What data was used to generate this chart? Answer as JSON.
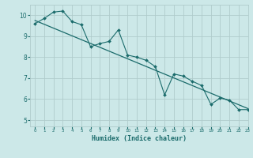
{
  "title": "",
  "xlabel": "Humidex (Indice chaleur)",
  "ylabel": "",
  "bg_color": "#cce8e8",
  "grid_color": "#b0cccc",
  "line_color": "#1a6b6b",
  "xlim": [
    -0.5,
    23
  ],
  "ylim": [
    4.7,
    10.5
  ],
  "yticks": [
    5,
    6,
    7,
    8,
    9,
    10
  ],
  "xticks": [
    0,
    1,
    2,
    3,
    4,
    5,
    6,
    7,
    8,
    9,
    10,
    11,
    12,
    13,
    14,
    15,
    16,
    17,
    18,
    19,
    20,
    21,
    22,
    23
  ],
  "line1_x": [
    0,
    1,
    2,
    3,
    4,
    5,
    6,
    7,
    8,
    9,
    10,
    11,
    12,
    13,
    14,
    15,
    16,
    17,
    18,
    19,
    20,
    21,
    22,
    23
  ],
  "line1_y": [
    9.6,
    9.85,
    10.15,
    10.2,
    9.7,
    9.55,
    8.5,
    8.65,
    8.75,
    9.3,
    8.1,
    8.0,
    7.85,
    7.55,
    6.2,
    7.2,
    7.1,
    6.85,
    6.65,
    5.75,
    6.05,
    5.95,
    5.5,
    5.5
  ],
  "line2_x": [
    0,
    23
  ],
  "line2_y": [
    9.75,
    5.55
  ]
}
